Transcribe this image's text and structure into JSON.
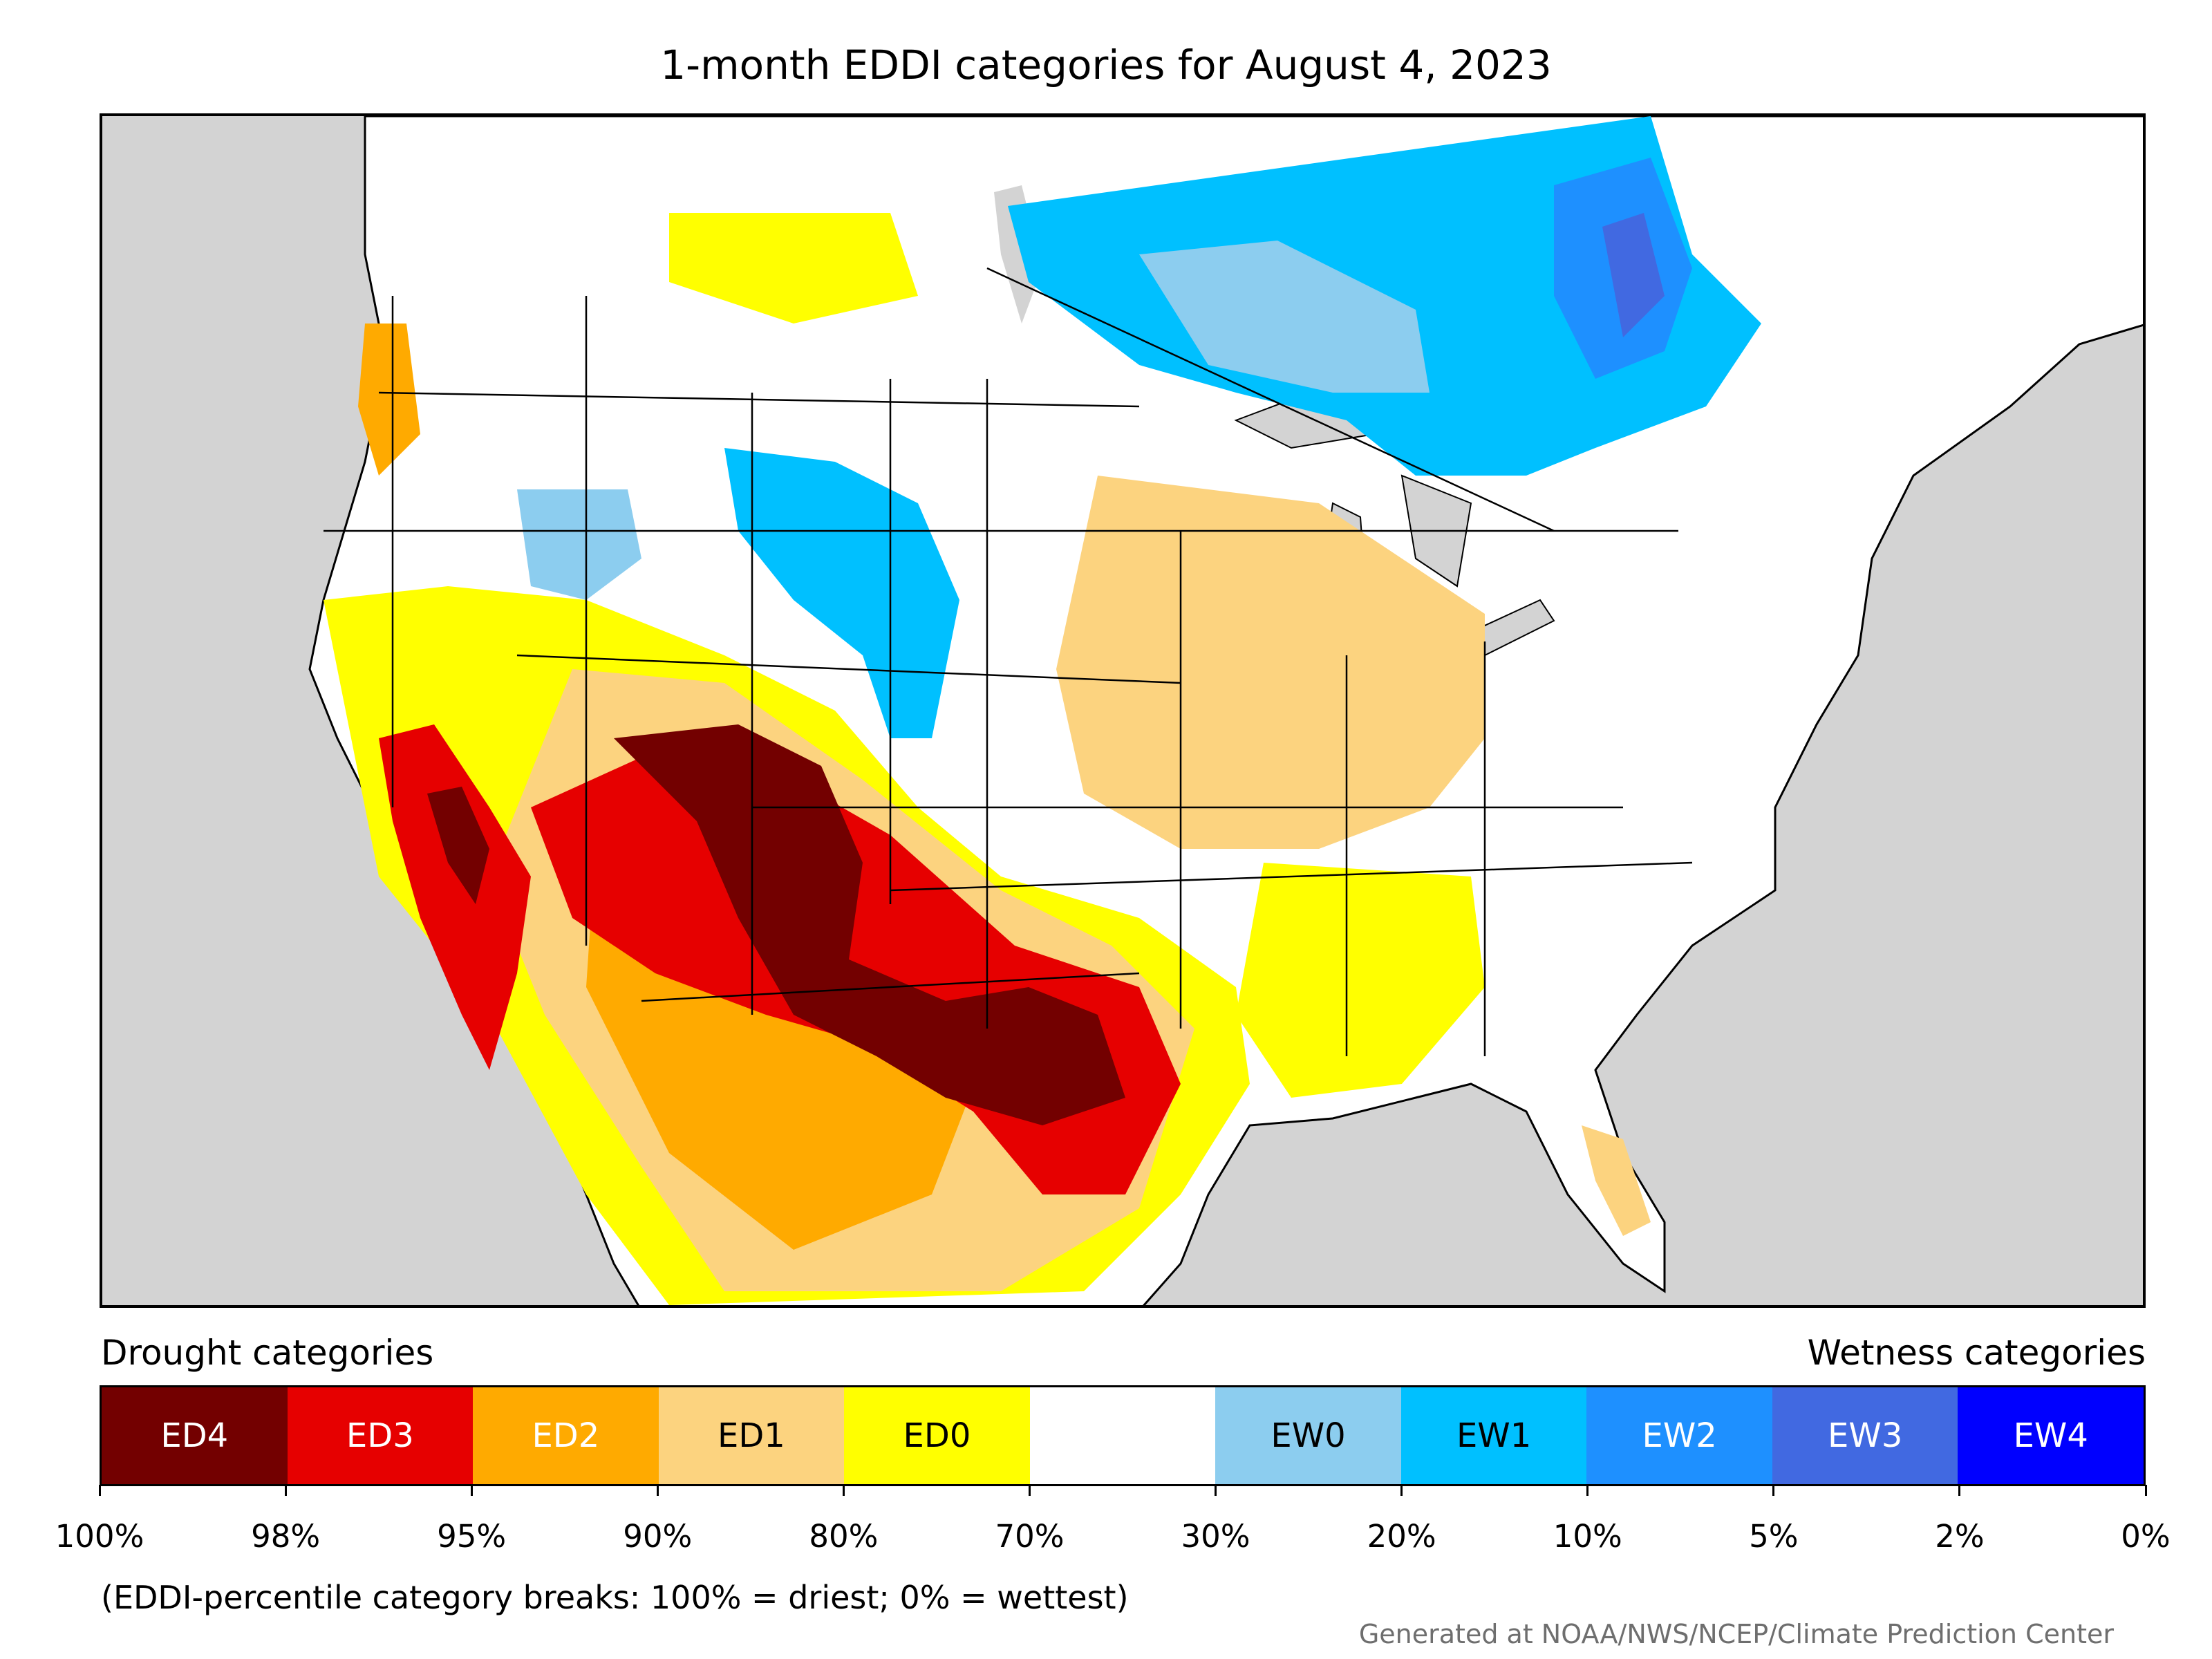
{
  "title": "1-month EDDI categories for August 4, 2023",
  "legend": {
    "left_header": "Drought categories",
    "right_header": "Wetness categories",
    "categories": [
      {
        "label": "ED4",
        "color": "#730000",
        "text_color": "#ffffff"
      },
      {
        "label": "ED3",
        "color": "#e60000",
        "text_color": "#ffffff"
      },
      {
        "label": "ED2",
        "color": "#ffaa00",
        "text_color": "#ffffff"
      },
      {
        "label": "ED1",
        "color": "#fcd37f",
        "text_color": "#000000"
      },
      {
        "label": "ED0",
        "color": "#ffff00",
        "text_color": "#000000"
      },
      {
        "label": "",
        "color": "#ffffff",
        "text_color": "#000000"
      },
      {
        "label": "EW0",
        "color": "#8ccdef",
        "text_color": "#000000"
      },
      {
        "label": "EW1",
        "color": "#00c0ff",
        "text_color": "#000000"
      },
      {
        "label": "EW2",
        "color": "#1e90ff",
        "text_color": "#ffffff"
      },
      {
        "label": "EW3",
        "color": "#4169e1",
        "text_color": "#ffffff"
      },
      {
        "label": "EW4",
        "color": "#0000ff",
        "text_color": "#ffffff"
      }
    ],
    "breaks": [
      "100%",
      "98%",
      "95%",
      "90%",
      "80%",
      "70%",
      "30%",
      "20%",
      "10%",
      "5%",
      "2%",
      "0%"
    ]
  },
  "note": "(EDDI-percentile category breaks: 100% = driest; 0% = wettest)",
  "credit": "Generated at NOAA/NWS/NCEP/Climate Prediction Center",
  "map": {
    "background_color": "#d3d3d3",
    "land_color": "#ffffff",
    "water_color": "#d3d3d3"
  }
}
